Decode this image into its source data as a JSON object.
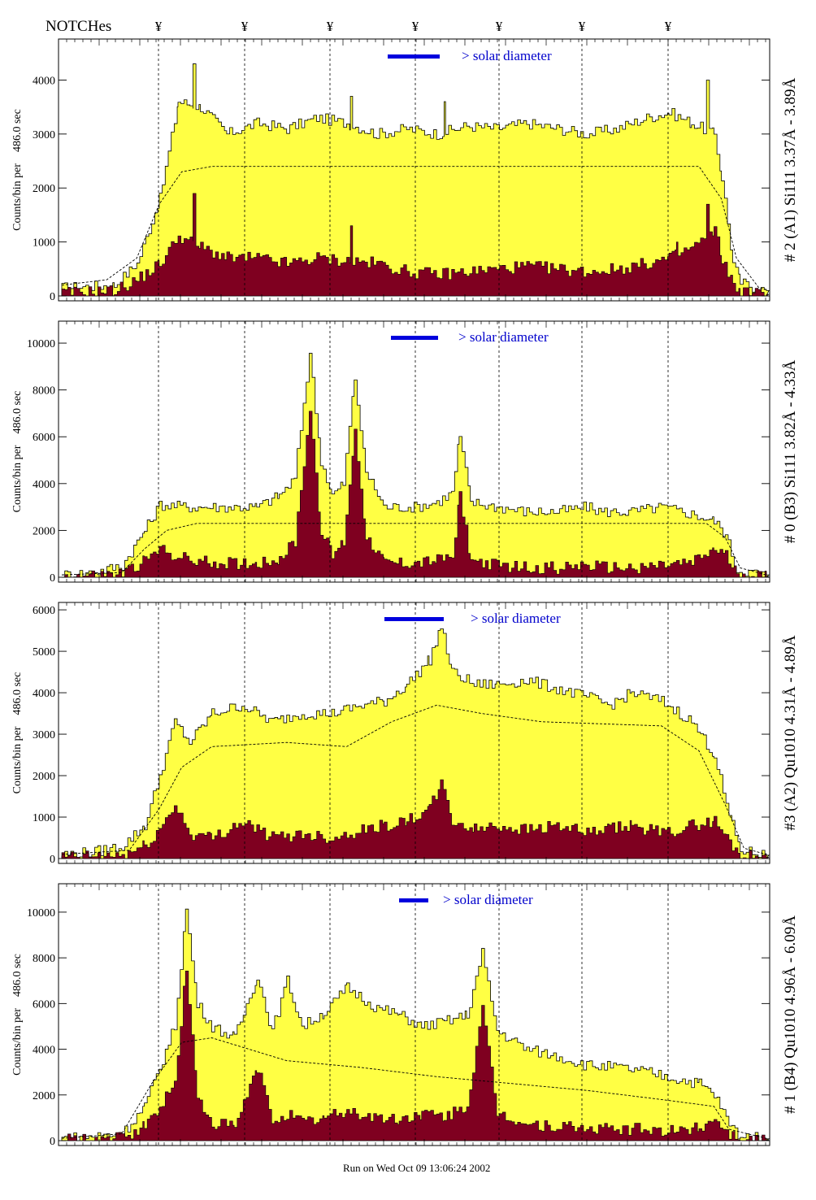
{
  "header": {
    "notch_label": "NOTCHes",
    "notch_marker": "¥"
  },
  "footer": {
    "run_text": "Run on Wed Oct 09 13:06:24 2002"
  },
  "colors": {
    "total": "#ffff44",
    "lower": "#7f0020",
    "legend_bar": "#0000dd",
    "legend_text": "#0000cc",
    "line_labels": "#0000aa"
  },
  "legend_text": "> solar diameter",
  "y_axis_label": "Counts/bin per    486.0 sec",
  "chart_data": [
    {
      "type": "area",
      "panel_title": "# 2 (A1) Si111  3.37Å - 3.89Å",
      "ylim": [
        0,
        4700
      ],
      "yticks": [
        0,
        1000,
        2000,
        3000,
        4000
      ],
      "upper": [
        [
          0,
          150
        ],
        [
          40,
          180
        ],
        [
          70,
          200
        ],
        [
          100,
          600
        ],
        [
          130,
          1800
        ],
        [
          155,
          3600
        ],
        [
          185,
          3500
        ],
        [
          220,
          3000
        ],
        [
          260,
          3200
        ],
        [
          300,
          3100
        ],
        [
          340,
          3300
        ],
        [
          380,
          3200
        ],
        [
          420,
          3000
        ],
        [
          460,
          3100
        ],
        [
          500,
          3000
        ],
        [
          540,
          3150
        ],
        [
          580,
          3100
        ],
        [
          620,
          3200
        ],
        [
          660,
          3100
        ],
        [
          700,
          3000
        ],
        [
          740,
          3100
        ],
        [
          780,
          3300
        ],
        [
          810,
          3400
        ],
        [
          840,
          3200
        ],
        [
          870,
          3000
        ],
        [
          880,
          2200
        ],
        [
          895,
          600
        ],
        [
          905,
          250
        ],
        [
          925,
          150
        ],
        [
          940,
          100
        ]
      ],
      "lower": [
        [
          0,
          50
        ],
        [
          40,
          80
        ],
        [
          70,
          100
        ],
        [
          100,
          300
        ],
        [
          130,
          600
        ],
        [
          155,
          1100
        ],
        [
          185,
          900
        ],
        [
          220,
          700
        ],
        [
          260,
          700
        ],
        [
          300,
          600
        ],
        [
          340,
          700
        ],
        [
          380,
          650
        ],
        [
          420,
          600
        ],
        [
          460,
          450
        ],
        [
          500,
          400
        ],
        [
          540,
          450
        ],
        [
          580,
          500
        ],
        [
          620,
          550
        ],
        [
          660,
          500
        ],
        [
          700,
          450
        ],
        [
          740,
          500
        ],
        [
          780,
          600
        ],
        [
          810,
          700
        ],
        [
          840,
          900
        ],
        [
          870,
          1200
        ],
        [
          880,
          700
        ],
        [
          895,
          200
        ],
        [
          905,
          80
        ],
        [
          925,
          50
        ],
        [
          940,
          30
        ]
      ],
      "dashed": [
        [
          0,
          200
        ],
        [
          60,
          300
        ],
        [
          100,
          700
        ],
        [
          130,
          1700
        ],
        [
          160,
          2300
        ],
        [
          200,
          2400
        ],
        [
          850,
          2400
        ],
        [
          880,
          1800
        ],
        [
          900,
          700
        ],
        [
          930,
          150
        ],
        [
          940,
          120
        ]
      ],
      "peaks_upper": [
        [
          175,
          4300
        ],
        [
          385,
          3700
        ],
        [
          510,
          3600
        ],
        [
          860,
          4000
        ]
      ],
      "peaks_lower": [
        [
          175,
          1900
        ],
        [
          385,
          1300
        ],
        [
          820,
          1000
        ],
        [
          860,
          1700
        ]
      ]
    },
    {
      "type": "area",
      "panel_title": "# 0 (B3) Si111  3.82Å - 4.33Å",
      "ylim": [
        0,
        10800
      ],
      "yticks": [
        0,
        2000,
        4000,
        6000,
        8000,
        10000
      ],
      "upper": [
        [
          0,
          100
        ],
        [
          40,
          200
        ],
        [
          80,
          500
        ],
        [
          110,
          2000
        ],
        [
          130,
          3100
        ],
        [
          170,
          3000
        ],
        [
          210,
          3000
        ],
        [
          260,
          3000
        ],
        [
          290,
          3500
        ],
        [
          310,
          4200
        ],
        [
          330,
          9600
        ],
        [
          345,
          5000
        ],
        [
          360,
          3500
        ],
        [
          375,
          4000
        ],
        [
          390,
          8500
        ],
        [
          405,
          4500
        ],
        [
          430,
          3000
        ],
        [
          470,
          3000
        ],
        [
          500,
          3200
        ],
        [
          520,
          3600
        ],
        [
          530,
          6000
        ],
        [
          545,
          3200
        ],
        [
          580,
          3000
        ],
        [
          620,
          2800
        ],
        [
          660,
          2800
        ],
        [
          700,
          3000
        ],
        [
          720,
          2800
        ],
        [
          760,
          2800
        ],
        [
          800,
          3000
        ],
        [
          840,
          2700
        ],
        [
          870,
          2400
        ],
        [
          885,
          1800
        ],
        [
          900,
          300
        ],
        [
          930,
          150
        ],
        [
          940,
          100
        ]
      ],
      "lower": [
        [
          0,
          30
        ],
        [
          40,
          60
        ],
        [
          80,
          150
        ],
        [
          110,
          700
        ],
        [
          130,
          1200
        ],
        [
          170,
          700
        ],
        [
          210,
          600
        ],
        [
          260,
          600
        ],
        [
          290,
          800
        ],
        [
          310,
          1500
        ],
        [
          330,
          7200
        ],
        [
          345,
          2000
        ],
        [
          360,
          900
        ],
        [
          375,
          1500
        ],
        [
          390,
          6200
        ],
        [
          405,
          1800
        ],
        [
          430,
          600
        ],
        [
          470,
          600
        ],
        [
          500,
          700
        ],
        [
          520,
          900
        ],
        [
          530,
          3500
        ],
        [
          545,
          700
        ],
        [
          580,
          500
        ],
        [
          620,
          400
        ],
        [
          660,
          400
        ],
        [
          700,
          500
        ],
        [
          720,
          400
        ],
        [
          760,
          400
        ],
        [
          800,
          500
        ],
        [
          840,
          600
        ],
        [
          870,
          1200
        ],
        [
          885,
          900
        ],
        [
          900,
          120
        ],
        [
          930,
          50
        ],
        [
          940,
          30
        ]
      ],
      "dashed": [
        [
          0,
          100
        ],
        [
          80,
          200
        ],
        [
          110,
          1200
        ],
        [
          140,
          2000
        ],
        [
          180,
          2300
        ],
        [
          860,
          2300
        ],
        [
          885,
          1700
        ],
        [
          905,
          400
        ],
        [
          940,
          100
        ]
      ],
      "peaks_upper": [],
      "peaks_lower": []
    },
    {
      "type": "area",
      "panel_title": "#3 (A2) Qu1010  4.31Å - 4.89Å",
      "ylim": [
        0,
        6100
      ],
      "yticks": [
        0,
        1000,
        2000,
        3000,
        4000,
        5000,
        6000
      ],
      "upper": [
        [
          0,
          100
        ],
        [
          40,
          150
        ],
        [
          80,
          300
        ],
        [
          110,
          800
        ],
        [
          130,
          2000
        ],
        [
          150,
          3300
        ],
        [
          170,
          2800
        ],
        [
          200,
          3500
        ],
        [
          240,
          3700
        ],
        [
          280,
          3300
        ],
        [
          320,
          3500
        ],
        [
          360,
          3500
        ],
        [
          400,
          3700
        ],
        [
          430,
          3800
        ],
        [
          460,
          4200
        ],
        [
          490,
          4800
        ],
        [
          505,
          5600
        ],
        [
          520,
          4500
        ],
        [
          550,
          4200
        ],
        [
          580,
          4200
        ],
        [
          620,
          4300
        ],
        [
          660,
          4100
        ],
        [
          700,
          3900
        ],
        [
          730,
          3700
        ],
        [
          760,
          4000
        ],
        [
          800,
          3800
        ],
        [
          840,
          3300
        ],
        [
          870,
          2500
        ],
        [
          890,
          1000
        ],
        [
          905,
          200
        ],
        [
          930,
          100
        ],
        [
          940,
          80
        ]
      ],
      "lower": [
        [
          0,
          30
        ],
        [
          40,
          50
        ],
        [
          80,
          80
        ],
        [
          110,
          300
        ],
        [
          130,
          700
        ],
        [
          150,
          1300
        ],
        [
          170,
          600
        ],
        [
          200,
          500
        ],
        [
          240,
          900
        ],
        [
          280,
          500
        ],
        [
          320,
          600
        ],
        [
          360,
          500
        ],
        [
          400,
          700
        ],
        [
          430,
          800
        ],
        [
          460,
          900
        ],
        [
          490,
          1200
        ],
        [
          505,
          1800
        ],
        [
          520,
          900
        ],
        [
          550,
          700
        ],
        [
          580,
          800
        ],
        [
          620,
          700
        ],
        [
          660,
          800
        ],
        [
          700,
          600
        ],
        [
          730,
          700
        ],
        [
          760,
          800
        ],
        [
          800,
          600
        ],
        [
          840,
          800
        ],
        [
          870,
          900
        ],
        [
          890,
          400
        ],
        [
          905,
          80
        ],
        [
          930,
          40
        ],
        [
          940,
          30
        ]
      ],
      "dashed": [
        [
          0,
          100
        ],
        [
          90,
          200
        ],
        [
          130,
          1200
        ],
        [
          160,
          2200
        ],
        [
          200,
          2700
        ],
        [
          300,
          2800
        ],
        [
          380,
          2700
        ],
        [
          440,
          3300
        ],
        [
          500,
          3700
        ],
        [
          560,
          3500
        ],
        [
          640,
          3300
        ],
        [
          800,
          3200
        ],
        [
          850,
          2600
        ],
        [
          885,
          1300
        ],
        [
          910,
          250
        ],
        [
          940,
          100
        ]
      ],
      "peaks_upper": [],
      "peaks_lower": []
    },
    {
      "type": "area",
      "panel_title": "# 1 (B4) Qu1010 4.96Å - 6.09Å",
      "ylim": [
        0,
        11100
      ],
      "yticks": [
        0,
        2000,
        4000,
        6000,
        8000,
        10000
      ],
      "upper": [
        [
          0,
          100
        ],
        [
          40,
          200
        ],
        [
          80,
          300
        ],
        [
          110,
          1500
        ],
        [
          130,
          3200
        ],
        [
          150,
          5000
        ],
        [
          165,
          10100
        ],
        [
          180,
          6000
        ],
        [
          200,
          5000
        ],
        [
          230,
          4500
        ],
        [
          260,
          7200
        ],
        [
          280,
          4800
        ],
        [
          300,
          7000
        ],
        [
          320,
          5000
        ],
        [
          350,
          5600
        ],
        [
          380,
          6700
        ],
        [
          420,
          5800
        ],
        [
          450,
          5500
        ],
        [
          480,
          5000
        ],
        [
          510,
          5200
        ],
        [
          540,
          5500
        ],
        [
          560,
          8200
        ],
        [
          580,
          4800
        ],
        [
          620,
          4000
        ],
        [
          660,
          3700
        ],
        [
          700,
          3300
        ],
        [
          740,
          3200
        ],
        [
          780,
          3000
        ],
        [
          820,
          2700
        ],
        [
          850,
          2500
        ],
        [
          870,
          2000
        ],
        [
          890,
          700
        ],
        [
          905,
          200
        ],
        [
          930,
          100
        ],
        [
          940,
          80
        ]
      ],
      "lower": [
        [
          0,
          30
        ],
        [
          40,
          50
        ],
        [
          80,
          100
        ],
        [
          110,
          600
        ],
        [
          130,
          1500
        ],
        [
          150,
          2500
        ],
        [
          165,
          7600
        ],
        [
          180,
          1800
        ],
        [
          200,
          800
        ],
        [
          230,
          600
        ],
        [
          260,
          3200
        ],
        [
          280,
          900
        ],
        [
          300,
          1200
        ],
        [
          320,
          800
        ],
        [
          350,
          1000
        ],
        [
          380,
          1300
        ],
        [
          420,
          1000
        ],
        [
          450,
          900
        ],
        [
          480,
          1200
        ],
        [
          510,
          1000
        ],
        [
          540,
          1500
        ],
        [
          560,
          5700
        ],
        [
          580,
          1200
        ],
        [
          620,
          700
        ],
        [
          660,
          600
        ],
        [
          700,
          500
        ],
        [
          740,
          500
        ],
        [
          780,
          500
        ],
        [
          820,
          400
        ],
        [
          850,
          600
        ],
        [
          870,
          1000
        ],
        [
          890,
          300
        ],
        [
          905,
          60
        ],
        [
          930,
          40
        ],
        [
          940,
          30
        ]
      ],
      "dashed": [
        [
          0,
          100
        ],
        [
          80,
          300
        ],
        [
          120,
          2500
        ],
        [
          160,
          4300
        ],
        [
          200,
          4500
        ],
        [
          300,
          3500
        ],
        [
          400,
          3200
        ],
        [
          500,
          2800
        ],
        [
          600,
          2500
        ],
        [
          700,
          2200
        ],
        [
          800,
          1800
        ],
        [
          870,
          1500
        ],
        [
          890,
          500
        ],
        [
          940,
          100
        ]
      ],
      "peaks_upper": [],
      "peaks_lower": []
    }
  ],
  "notch_x": [
    195,
    301,
    406,
    511,
    614,
    716,
    822
  ],
  "legend_x": [
    [
      477,
      541
    ],
    [
      481,
      539
    ],
    [
      473,
      546
    ],
    [
      491,
      527
    ]
  ],
  "legend_text_x": [
    568,
    564,
    579,
    545
  ]
}
